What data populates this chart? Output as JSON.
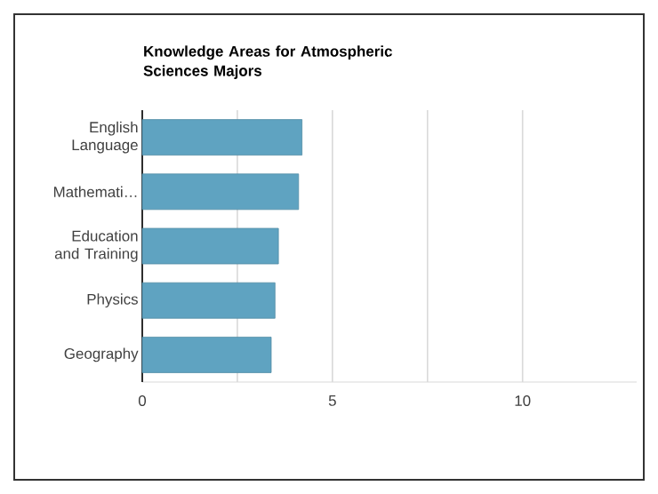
{
  "chart_data": {
    "type": "bar",
    "orientation": "horizontal",
    "title": "Knowledge Areas for Atmospheric Sciences Majors",
    "categories": [
      "English Language",
      "Mathemati…",
      "Education and Training",
      "Physics",
      "Geography"
    ],
    "values": [
      4.2,
      4.11,
      3.58,
      3.49,
      3.39
    ],
    "color": "#5fa3c1",
    "xlim": [
      0,
      13
    ],
    "xticks": [
      0,
      {
        "value": 2.5,
        "label": null
      },
      5,
      {
        "value": 7.5,
        "label": null
      },
      10
    ],
    "grid": "x"
  }
}
